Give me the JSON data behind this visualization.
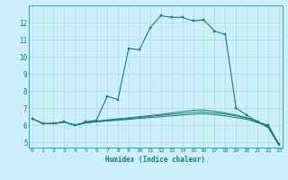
{
  "xlabel": "Humidex (Indice chaleur)",
  "bg_color": "#cceeff",
  "grid_color": "#aaddcc",
  "line_color": "#1a7a6a",
  "xticks": [
    0,
    1,
    2,
    3,
    4,
    5,
    6,
    7,
    8,
    9,
    10,
    11,
    12,
    13,
    14,
    15,
    16,
    17,
    18,
    19,
    20,
    21,
    22,
    23
  ],
  "yticks": [
    5,
    6,
    7,
    8,
    9,
    10,
    11,
    12
  ],
  "line1_x": [
    0,
    1,
    2,
    3,
    4,
    5,
    6,
    7,
    8,
    9,
    10,
    11,
    12,
    13,
    14,
    15,
    16,
    17,
    18,
    19,
    20,
    21,
    22,
    23
  ],
  "line1_y": [
    6.4,
    6.1,
    6.1,
    6.2,
    6.0,
    6.2,
    6.3,
    7.7,
    7.5,
    10.5,
    10.4,
    11.7,
    12.4,
    12.3,
    12.3,
    12.1,
    12.15,
    11.5,
    11.3,
    7.0,
    6.6,
    6.2,
    6.0,
    4.9
  ],
  "line2_x": [
    0,
    1,
    2,
    3,
    4,
    5,
    6,
    7,
    8,
    9,
    10,
    11,
    12,
    13,
    14,
    15,
    16,
    17,
    18,
    19,
    20,
    21,
    22,
    23
  ],
  "line2_y": [
    6.4,
    6.1,
    6.1,
    6.2,
    6.0,
    6.15,
    6.2,
    6.25,
    6.3,
    6.35,
    6.4,
    6.45,
    6.5,
    6.55,
    6.6,
    6.65,
    6.68,
    6.62,
    6.55,
    6.45,
    6.35,
    6.15,
    5.95,
    4.85
  ],
  "line3_x": [
    0,
    1,
    2,
    3,
    4,
    5,
    6,
    7,
    8,
    9,
    10,
    11,
    12,
    13,
    14,
    15,
    16,
    17,
    18,
    19,
    20,
    21,
    22,
    23
  ],
  "line3_y": [
    6.4,
    6.1,
    6.1,
    6.2,
    6.0,
    6.15,
    6.22,
    6.28,
    6.34,
    6.4,
    6.46,
    6.52,
    6.58,
    6.64,
    6.7,
    6.76,
    6.78,
    6.72,
    6.65,
    6.55,
    6.42,
    6.22,
    5.9,
    4.85
  ],
  "line4_x": [
    0,
    1,
    2,
    3,
    4,
    5,
    6,
    7,
    8,
    9,
    10,
    11,
    12,
    13,
    14,
    15,
    16,
    17,
    18,
    19,
    20,
    21,
    22,
    23
  ],
  "line4_y": [
    6.4,
    6.1,
    6.1,
    6.2,
    6.0,
    6.15,
    6.25,
    6.32,
    6.38,
    6.44,
    6.5,
    6.57,
    6.64,
    6.72,
    6.8,
    6.88,
    6.9,
    6.82,
    6.72,
    6.6,
    6.45,
    6.25,
    5.85,
    4.85
  ]
}
